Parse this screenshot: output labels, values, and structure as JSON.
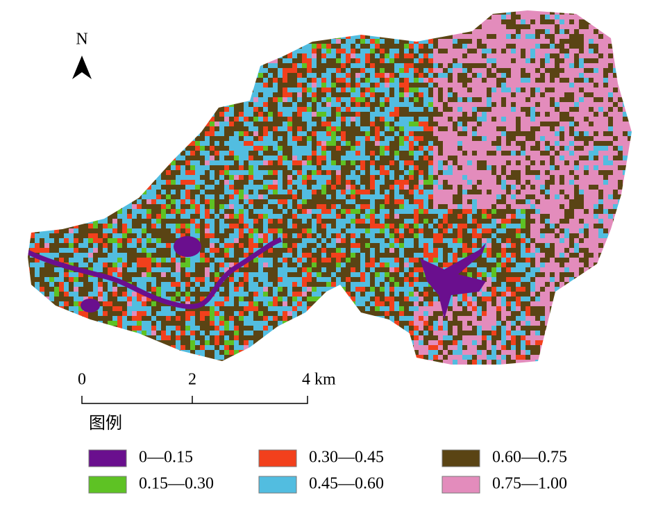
{
  "north_arrow": {
    "label": "N"
  },
  "scale_bar": {
    "labels": [
      "0",
      "2",
      "4 km"
    ]
  },
  "legend": {
    "title": "图例",
    "items": [
      {
        "label": "0—0.15",
        "color": "#6a0f8e"
      },
      {
        "label": "0.15—0.30",
        "color": "#5ec224"
      },
      {
        "label": "0.30—0.45",
        "color": "#f2401c"
      },
      {
        "label": "0.45—0.60",
        "color": "#52bde0"
      },
      {
        "label": "0.60—0.75",
        "color": "#5a4414"
      },
      {
        "label": "0.75—1.00",
        "color": "#e38cbc"
      }
    ]
  }
}
